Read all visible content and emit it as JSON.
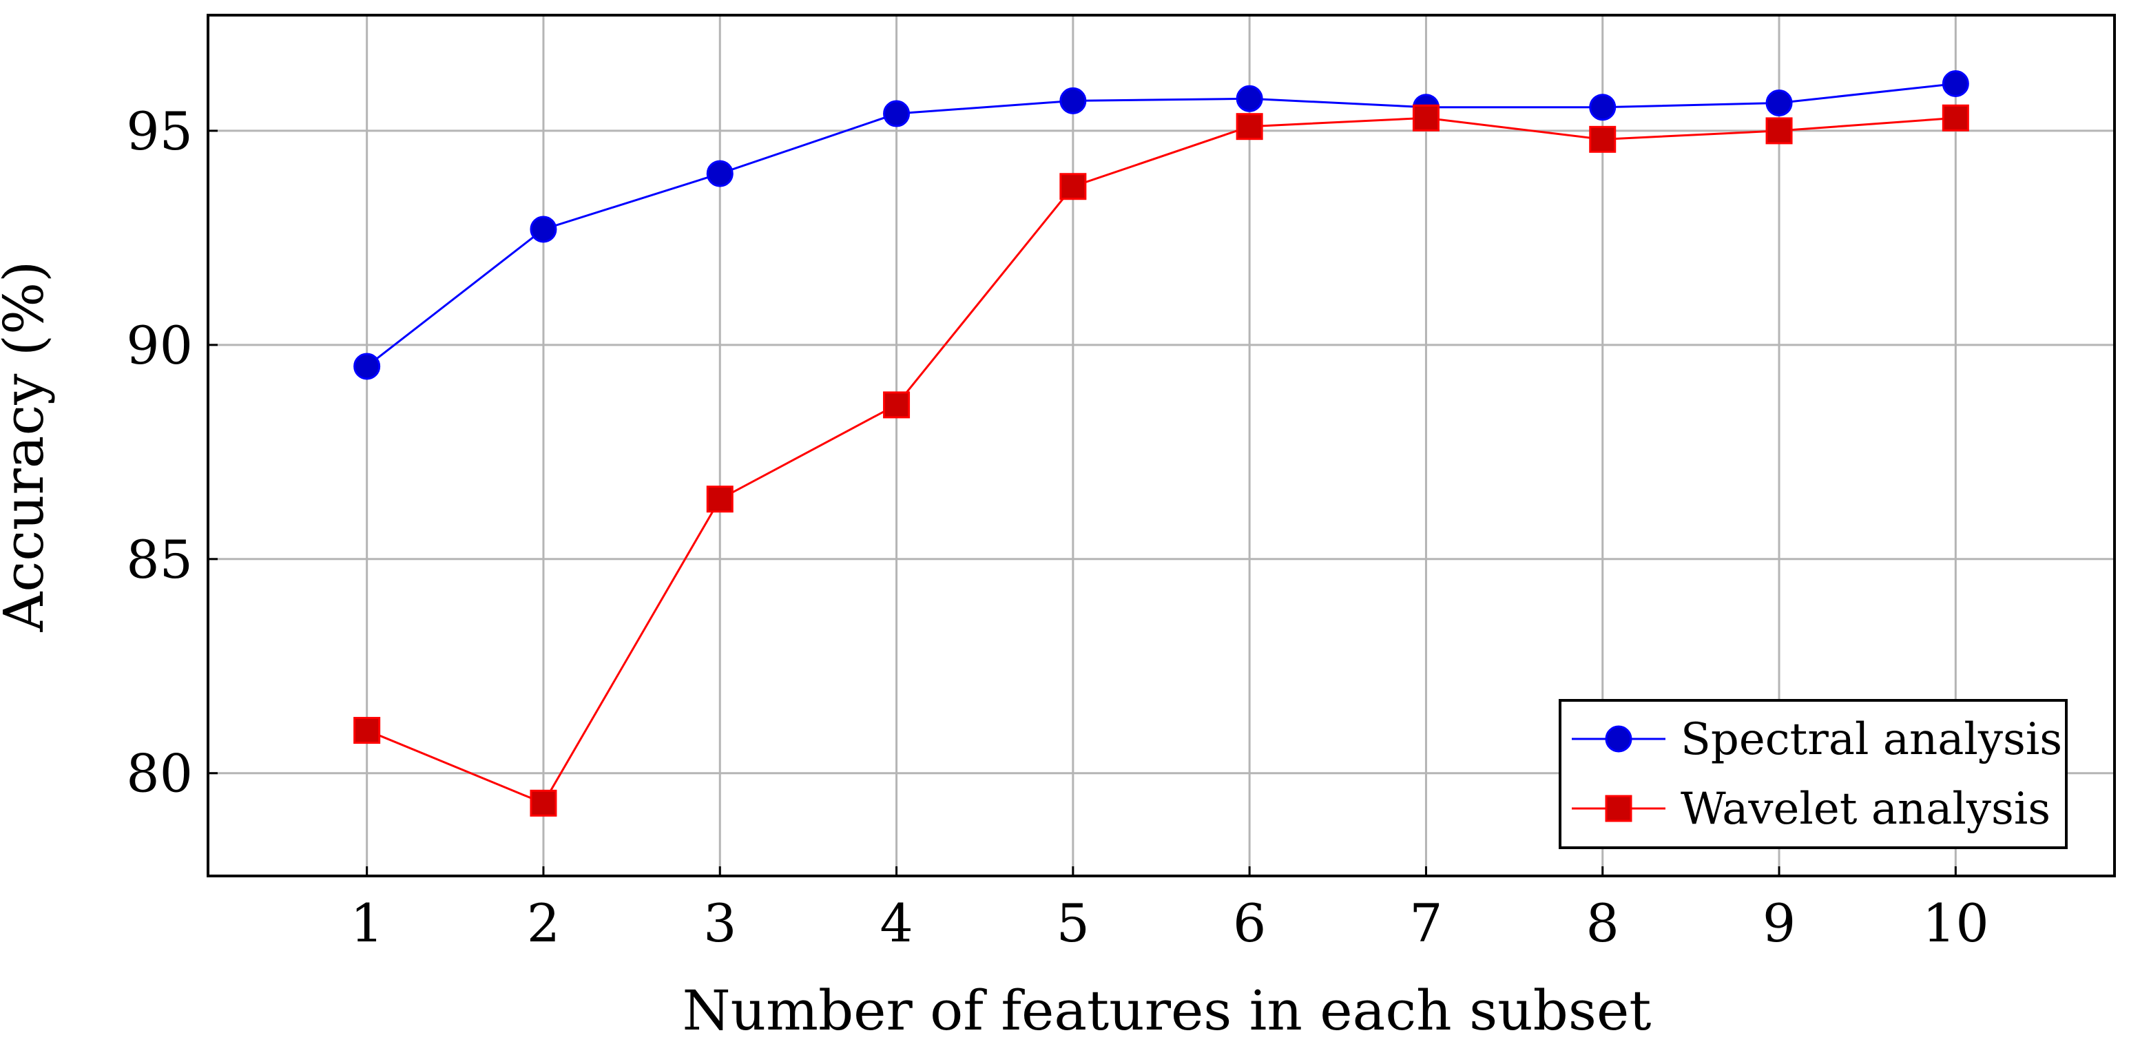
{
  "chart_data": {
    "type": "line",
    "title": "",
    "xlabel": "Number of features in each subset",
    "ylabel": "Accuracy (%)",
    "x": [
      1,
      2,
      3,
      4,
      5,
      6,
      7,
      8,
      9,
      10
    ],
    "xlim": [
      0.1,
      10.9
    ],
    "ylim": [
      77.6,
      97.7
    ],
    "xticks": [
      "1",
      "2",
      "3",
      "4",
      "5",
      "6",
      "7",
      "8",
      "9",
      "10"
    ],
    "yticks": [
      80,
      85,
      90,
      95
    ],
    "ytick_labels": [
      "80",
      "85",
      "90",
      "95"
    ],
    "grid": true,
    "legend_position": "bottom-right",
    "series": [
      {
        "name": "Spectral analysis",
        "color": "#0000ff",
        "marker": "circle",
        "values": [
          89.5,
          92.7,
          94.0,
          95.4,
          95.7,
          95.75,
          95.55,
          95.55,
          95.65,
          96.1
        ]
      },
      {
        "name": "Wavelet analysis",
        "color": "#ff0000",
        "marker": "square",
        "values": [
          81.0,
          79.3,
          86.4,
          88.6,
          93.7,
          95.1,
          95.3,
          94.8,
          95.0,
          95.3
        ]
      }
    ]
  }
}
